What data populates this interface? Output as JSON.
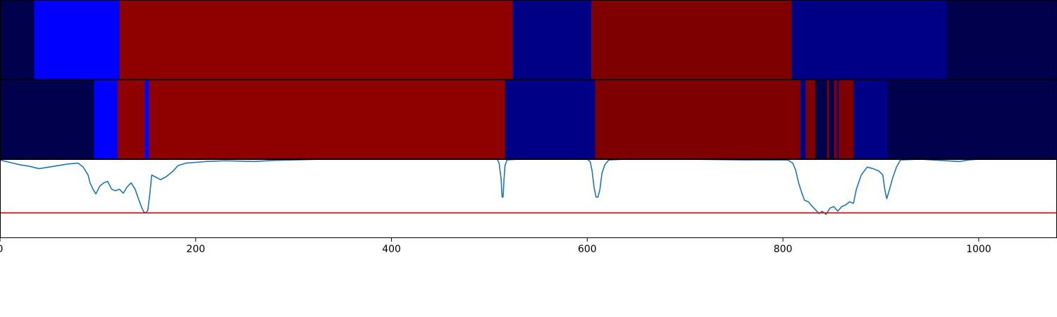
{
  "chart_data": {
    "type": "line",
    "xlim": [
      0,
      1080
    ],
    "x_ticks": [
      0,
      200,
      400,
      600,
      800,
      1000
    ],
    "x_tick_labels": [
      "0",
      "200",
      "400",
      "600",
      "800",
      "1000"
    ],
    "segment_colors": {
      "dark_navy": "#00004c",
      "blue": "#0000ff",
      "navy": "#000087",
      "red": "#8f0000",
      "maroon": "#7f0000"
    },
    "strip1": [
      {
        "start": 0,
        "end": 35,
        "color": "dark_navy"
      },
      {
        "start": 35,
        "end": 122,
        "color": "blue"
      },
      {
        "start": 122,
        "end": 524,
        "color": "red"
      },
      {
        "start": 524,
        "end": 604,
        "color": "navy"
      },
      {
        "start": 604,
        "end": 809,
        "color": "maroon"
      },
      {
        "start": 809,
        "end": 967,
        "color": "navy"
      },
      {
        "start": 967,
        "end": 1080,
        "color": "dark_navy"
      }
    ],
    "strip2": [
      {
        "start": 0,
        "end": 96,
        "color": "dark_navy"
      },
      {
        "start": 96,
        "end": 120,
        "color": "blue"
      },
      {
        "start": 120,
        "end": 148,
        "color": "red"
      },
      {
        "start": 148,
        "end": 152,
        "color": "blue"
      },
      {
        "start": 152,
        "end": 516,
        "color": "red"
      },
      {
        "start": 516,
        "end": 608,
        "color": "navy"
      },
      {
        "start": 608,
        "end": 818,
        "color": "maroon"
      },
      {
        "start": 818,
        "end": 823,
        "color": "navy"
      },
      {
        "start": 823,
        "end": 833,
        "color": "maroon"
      },
      {
        "start": 833,
        "end": 845,
        "color": "dark_navy"
      },
      {
        "start": 845,
        "end": 847,
        "color": "maroon"
      },
      {
        "start": 847,
        "end": 852,
        "color": "dark_navy"
      },
      {
        "start": 852,
        "end": 855,
        "color": "maroon"
      },
      {
        "start": 855,
        "end": 857,
        "color": "navy"
      },
      {
        "start": 857,
        "end": 872,
        "color": "maroon"
      },
      {
        "start": 872,
        "end": 907,
        "color": "navy"
      },
      {
        "start": 907,
        "end": 1080,
        "color": "dark_navy"
      }
    ],
    "line_ylim": [
      0,
      1
    ],
    "threshold": {
      "value": 0.32,
      "color": "#ff0000"
    },
    "series_color": "#1f77b4",
    "series": [
      {
        "values": [
          [
            0,
            0.99
          ],
          [
            10,
            0.96
          ],
          [
            20,
            0.93
          ],
          [
            30,
            0.91
          ],
          [
            40,
            0.88
          ],
          [
            50,
            0.9
          ],
          [
            60,
            0.92
          ],
          [
            70,
            0.94
          ],
          [
            80,
            0.95
          ],
          [
            85,
            0.9
          ],
          [
            90,
            0.8
          ],
          [
            92,
            0.7
          ],
          [
            95,
            0.62
          ],
          [
            98,
            0.56
          ],
          [
            102,
            0.66
          ],
          [
            106,
            0.7
          ],
          [
            110,
            0.72
          ],
          [
            114,
            0.62
          ],
          [
            118,
            0.6
          ],
          [
            122,
            0.62
          ],
          [
            126,
            0.57
          ],
          [
            130,
            0.65
          ],
          [
            134,
            0.7
          ],
          [
            138,
            0.62
          ],
          [
            142,
            0.48
          ],
          [
            145,
            0.38
          ],
          [
            147,
            0.33
          ],
          [
            149,
            0.32
          ],
          [
            151,
            0.35
          ],
          [
            153,
            0.55
          ],
          [
            155,
            0.8
          ],
          [
            158,
            0.78
          ],
          [
            164,
            0.74
          ],
          [
            170,
            0.78
          ],
          [
            176,
            0.84
          ],
          [
            182,
            0.92
          ],
          [
            190,
            0.95
          ],
          [
            210,
            0.97
          ],
          [
            230,
            0.98
          ],
          [
            260,
            0.97
          ],
          [
            280,
            0.985
          ],
          [
            300,
            0.99
          ],
          [
            330,
            1.0
          ],
          [
            400,
            1.0
          ],
          [
            450,
            1.0
          ],
          [
            490,
            1.0
          ],
          [
            508,
            1.0
          ],
          [
            510,
            0.95
          ],
          [
            512,
            0.75
          ],
          [
            513,
            0.52
          ],
          [
            514,
            0.52
          ],
          [
            515,
            0.75
          ],
          [
            516,
            0.92
          ],
          [
            518,
            0.99
          ],
          [
            530,
            1.0
          ],
          [
            580,
            1.0
          ],
          [
            600,
            1.0
          ],
          [
            603,
            0.97
          ],
          [
            605,
            0.85
          ],
          [
            607,
            0.64
          ],
          [
            609,
            0.52
          ],
          [
            611,
            0.52
          ],
          [
            613,
            0.62
          ],
          [
            615,
            0.82
          ],
          [
            618,
            0.93
          ],
          [
            622,
            0.99
          ],
          [
            640,
            1.0
          ],
          [
            700,
            1.0
          ],
          [
            760,
            0.99
          ],
          [
            790,
            0.99
          ],
          [
            805,
            0.99
          ],
          [
            810,
            0.95
          ],
          [
            813,
            0.86
          ],
          [
            816,
            0.7
          ],
          [
            819,
            0.58
          ],
          [
            822,
            0.48
          ],
          [
            826,
            0.46
          ],
          [
            830,
            0.4
          ],
          [
            834,
            0.35
          ],
          [
            837,
            0.31
          ],
          [
            840,
            0.34
          ],
          [
            844,
            0.3
          ],
          [
            848,
            0.38
          ],
          [
            852,
            0.4
          ],
          [
            856,
            0.34
          ],
          [
            860,
            0.4
          ],
          [
            864,
            0.42
          ],
          [
            868,
            0.46
          ],
          [
            872,
            0.44
          ],
          [
            875,
            0.62
          ],
          [
            880,
            0.8
          ],
          [
            886,
            0.9
          ],
          [
            892,
            0.88
          ],
          [
            898,
            0.85
          ],
          [
            902,
            0.8
          ],
          [
            904,
            0.62
          ],
          [
            906,
            0.5
          ],
          [
            908,
            0.58
          ],
          [
            912,
            0.76
          ],
          [
            916,
            0.9
          ],
          [
            920,
            0.99
          ],
          [
            940,
            1.0
          ],
          [
            980,
            0.97
          ],
          [
            990,
            0.99
          ],
          [
            1000,
            1.0
          ],
          [
            1040,
            1.0
          ],
          [
            1080,
            1.0
          ]
        ]
      }
    ]
  }
}
